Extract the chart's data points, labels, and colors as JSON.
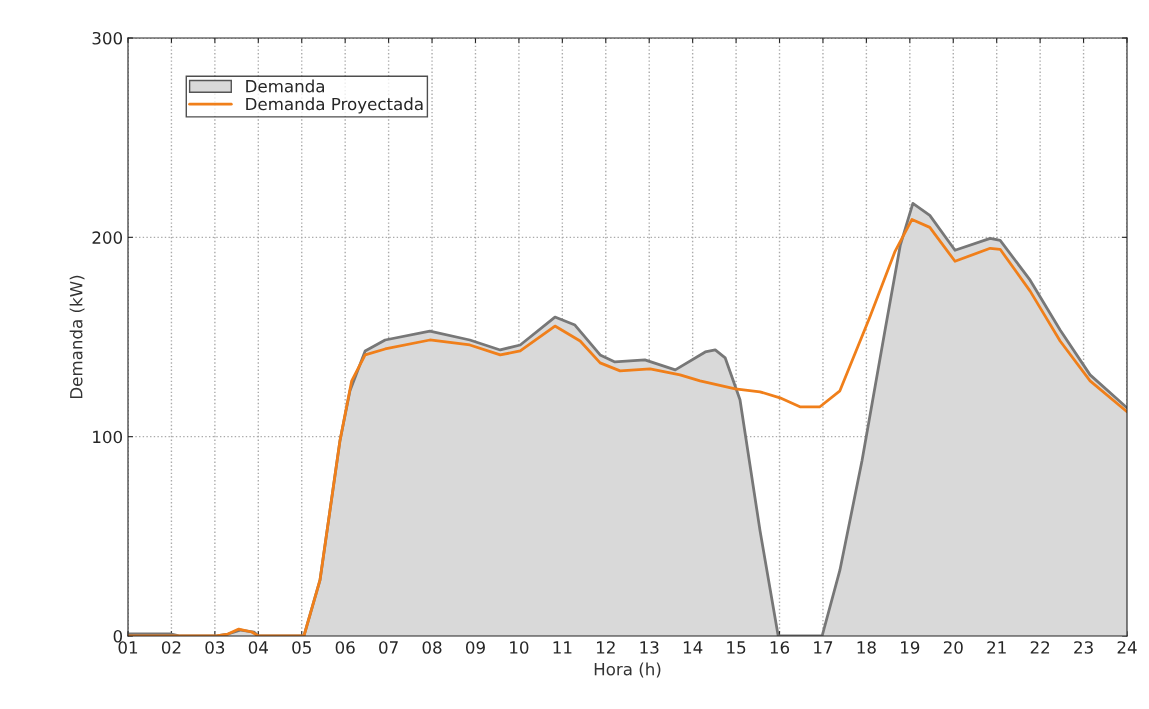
{
  "chart_data": {
    "type": "area",
    "xlabel": "Hora (h)",
    "ylabel": "Demanda (kW)",
    "xlim": [
      1,
      24
    ],
    "ylim": [
      0,
      300
    ],
    "xticks": [
      {
        "value": 1,
        "label": "01"
      },
      {
        "value": 2,
        "label": "02"
      },
      {
        "value": 3,
        "label": "03"
      },
      {
        "value": 4,
        "label": "04"
      },
      {
        "value": 5,
        "label": "05"
      },
      {
        "value": 6,
        "label": "06"
      },
      {
        "value": 7,
        "label": "07"
      },
      {
        "value": 8,
        "label": "08"
      },
      {
        "value": 9,
        "label": "09"
      },
      {
        "value": 10,
        "label": "10"
      },
      {
        "value": 11,
        "label": "11"
      },
      {
        "value": 12,
        "label": "12"
      },
      {
        "value": 13,
        "label": "13"
      },
      {
        "value": 14,
        "label": "14"
      },
      {
        "value": 15,
        "label": "15"
      },
      {
        "value": 16,
        "label": "16"
      },
      {
        "value": 17,
        "label": "17"
      },
      {
        "value": 18,
        "label": "18"
      },
      {
        "value": 19,
        "label": "19"
      },
      {
        "value": 20,
        "label": "20"
      },
      {
        "value": 21,
        "label": "21"
      },
      {
        "value": 22,
        "label": "22"
      },
      {
        "value": 23,
        "label": "23"
      },
      {
        "value": 24,
        "label": "24"
      }
    ],
    "yticks": [
      0,
      100,
      200,
      300
    ],
    "grid": true,
    "legend": "top left",
    "series": [
      {
        "name": "Demanda",
        "color": "#d9d9d9",
        "x": [
          1.0,
          2.0,
          2.2,
          3.0,
          3.3,
          3.6,
          3.9,
          4.0,
          5.0,
          5.05,
          5.42,
          5.88,
          6.11,
          6.46,
          6.92,
          7.95,
          8.87,
          9.57,
          10.03,
          10.83,
          11.29,
          11.87,
          12.21,
          12.9,
          13.6,
          14.29,
          14.52,
          14.75,
          15.09,
          15.55,
          15.97,
          16.98,
          17.39,
          17.9,
          18.43,
          18.78,
          19.07,
          19.46,
          20.04,
          20.85,
          21.08,
          21.77,
          22.46,
          23.15,
          24.0
        ],
        "values": [
          1,
          1,
          0,
          0,
          1,
          3,
          2,
          0,
          0,
          0,
          28,
          98,
          123,
          143,
          148.5,
          153,
          148.5,
          143.5,
          146,
          160,
          156,
          141,
          137.5,
          138.5,
          133.5,
          142.5,
          143.5,
          139.5,
          118.5,
          53,
          0,
          0,
          33,
          88,
          153.5,
          196,
          217,
          211,
          193.5,
          199.5,
          198.5,
          178.5,
          153.5,
          131,
          114.5
        ]
      },
      {
        "name": "Demanda Proyectada",
        "type": "line",
        "color": "#f07f1a",
        "x": [
          1.0,
          3.0,
          3.3,
          3.55,
          3.85,
          4.0,
          4.96,
          5.05,
          5.42,
          5.88,
          6.15,
          6.46,
          6.92,
          7.95,
          8.87,
          9.57,
          10.03,
          10.83,
          11.41,
          11.87,
          12.33,
          13.02,
          13.71,
          14.17,
          14.98,
          15.55,
          16.01,
          16.47,
          16.93,
          17.39,
          18.08,
          18.66,
          19.05,
          19.46,
          20.04,
          20.85,
          21.08,
          21.77,
          22.46,
          23.15,
          24.0
        ],
        "values": [
          0,
          0,
          1,
          3.5,
          2,
          0,
          0,
          0,
          28,
          98,
          128,
          141,
          144,
          148.5,
          146,
          141,
          143,
          155.5,
          148,
          137,
          133,
          134,
          131,
          128,
          124,
          122.5,
          119.5,
          115,
          115,
          123,
          160,
          193,
          209,
          205,
          188,
          194.5,
          194,
          173,
          148,
          128,
          112.5
        ]
      }
    ]
  }
}
